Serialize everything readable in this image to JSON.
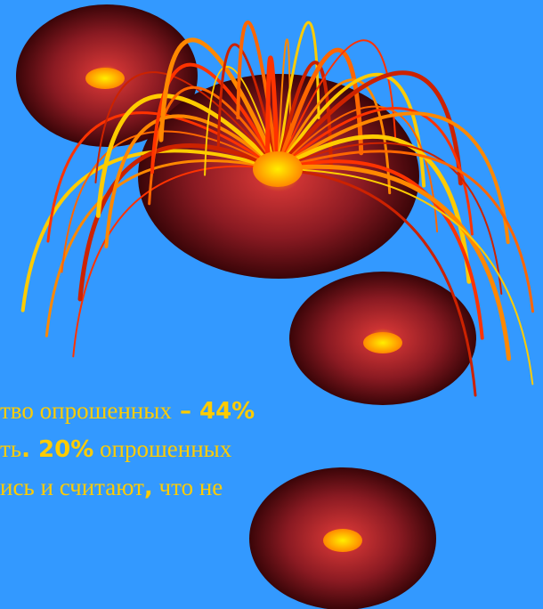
{
  "text": {
    "lines": [
      [
        {
          "text": "тво опрошенных",
          "style": "serif"
        },
        {
          "text": " – 44%",
          "style": "bold"
        }
      ],
      [
        {
          "text": "ть",
          "style": "serif"
        },
        {
          "text": ". 20%",
          "style": "bold"
        },
        {
          "text": " опрошенных",
          "style": "serif"
        }
      ],
      [
        {
          "text": "ись и считают",
          "style": "serif"
        },
        {
          "text": ",",
          "style": "bold"
        },
        {
          "text": " что не",
          "style": "serif"
        }
      ]
    ]
  }
}
